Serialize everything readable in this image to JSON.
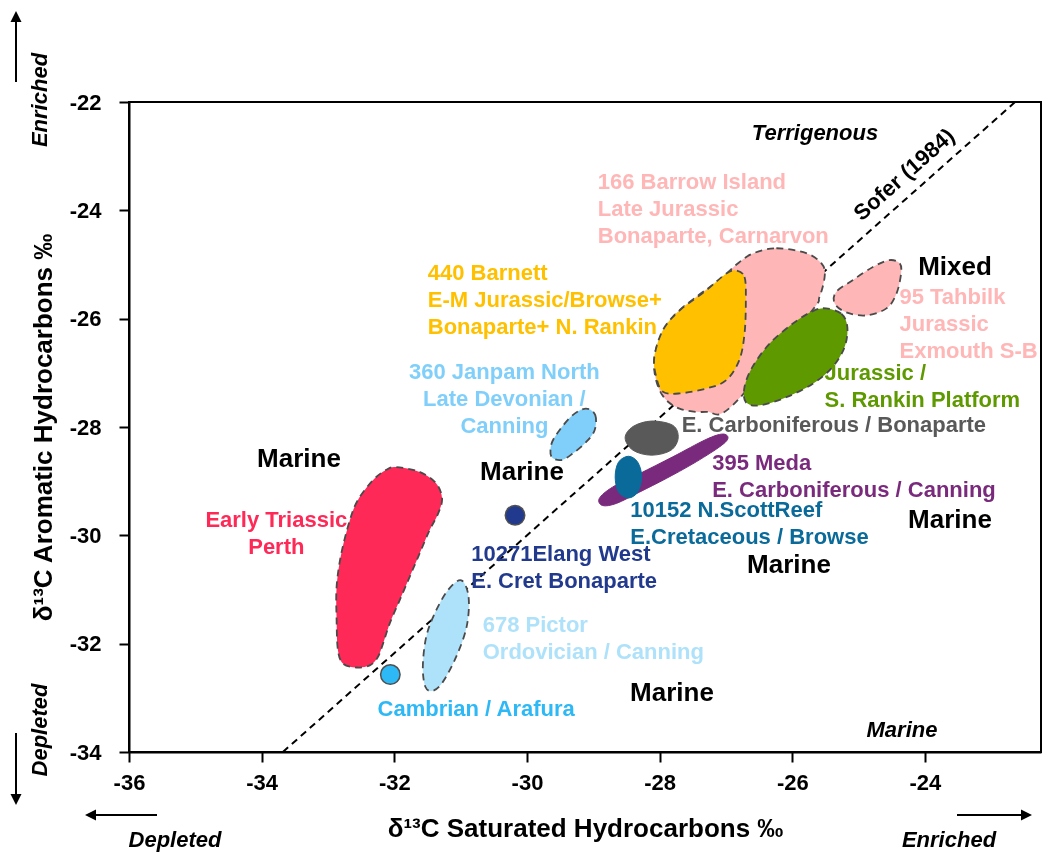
{
  "chart_data": {
    "type": "scatter",
    "xlabel": "δ¹³C Saturated Hydrocarbons ‰",
    "ylabel": "δ¹³C Aromatic Hydrocarbons ‰",
    "xlim": [
      -36,
      -22.25
    ],
    "ylim": [
      -34,
      -22
    ],
    "xticks": [
      -36,
      -34,
      -32,
      -30,
      -28,
      -26,
      -24
    ],
    "yticks": [
      -34,
      -32,
      -30,
      -28,
      -26,
      -24,
      -22
    ],
    "line_style": "dashed",
    "series": [
      {
        "type": "line",
        "name": "Sofer (1984)",
        "color": "#000000",
        "x": [
          -33.68,
          -22.64
        ],
        "values": [
          -34,
          -22
        ]
      },
      {
        "type": "area",
        "name": "Early Triassic\nPerth",
        "color": "#ff2957",
        "x": [
          -31.97,
          -31.62,
          -31.37,
          -31.28,
          -31.34,
          -31.47,
          -31.62,
          -31.77,
          -31.92,
          -32.07,
          -32.17,
          -32.25,
          -32.37,
          -32.57,
          -32.77,
          -32.85,
          -32.87,
          -32.87,
          -32.8,
          -32.67,
          -32.55,
          -32.32,
          -32.12
        ],
        "values": [
          -28.74,
          -28.83,
          -29.04,
          -29.32,
          -29.6,
          -29.91,
          -30.34,
          -30.77,
          -31.2,
          -31.63,
          -32.0,
          -32.25,
          -32.4,
          -32.44,
          -32.37,
          -32.12,
          -31.57,
          -30.95,
          -30.34,
          -29.72,
          -29.35,
          -28.98,
          -28.79
        ]
      },
      {
        "type": "area",
        "name": "678 Pictor\nOrdovician / Canning",
        "color": "#aee1fa",
        "x": [
          -30.99,
          -30.88,
          -30.91,
          -31.07,
          -31.27,
          -31.42,
          -31.53,
          -31.57,
          -31.52,
          -31.39,
          -31.19
        ],
        "values": [
          -30.83,
          -31.14,
          -31.69,
          -32.25,
          -32.71,
          -32.87,
          -32.8,
          -32.43,
          -31.88,
          -31.44,
          -31.01
        ]
      },
      {
        "type": "area",
        "name": "360 Janpam North\nLate Devonian /\nCanning",
        "color": "#7fcffa",
        "x": [
          -29.11,
          -28.97,
          -28.98,
          -29.11,
          -29.31,
          -29.48,
          -29.63,
          -29.63,
          -29.51,
          -29.31
        ],
        "values": [
          -27.66,
          -27.78,
          -28.06,
          -28.28,
          -28.49,
          -28.61,
          -28.55,
          -28.31,
          -28.06,
          -27.78
        ]
      },
      {
        "type": "area",
        "name": "E. Carboniferous / Bonaparte",
        "color": "#595959",
        "line_style": "solid",
        "x": [
          -28.52,
          -28.4,
          -28.12,
          -27.8,
          -27.72,
          -27.83,
          -28.12,
          -28.4
        ],
        "values": [
          -28.2,
          -27.99,
          -27.89,
          -27.97,
          -28.2,
          -28.43,
          -28.52,
          -28.43
        ]
      },
      {
        "type": "area",
        "name": "395 Meda\nE. Carboniferous / Canning",
        "color": "#7a2a7c",
        "line_style": "solid",
        "x": [
          -28.91,
          -28.71,
          -28.3,
          -27.8,
          -27.3,
          -27.05,
          -26.97,
          -27.1,
          -27.5,
          -27.9,
          -28.3,
          -28.65,
          -28.86
        ],
        "values": [
          -29.32,
          -29.11,
          -28.86,
          -28.55,
          -28.23,
          -28.13,
          -28.21,
          -28.37,
          -28.68,
          -28.95,
          -29.2,
          -29.41,
          -29.45
        ]
      },
      {
        "type": "area",
        "name": "10152 N.ScottReef\nE.Cretaceous / Browse",
        "color": "#0a6a9a",
        "line_style": "solid",
        "x": [
          -28.47,
          -28.33,
          -28.27,
          -28.33,
          -28.47,
          -28.62,
          -28.67,
          -28.62
        ],
        "values": [
          -28.54,
          -28.65,
          -28.92,
          -29.2,
          -29.31,
          -29.2,
          -28.92,
          -28.65
        ]
      },
      {
        "type": "area",
        "name": "166 Barrow Island\nLate Jurassic\nBonaparte, Carnarvon",
        "color": "#ffb6b6",
        "x": [
          -26.6,
          -26.24,
          -25.79,
          -25.56,
          -25.51,
          -25.59,
          -25.74,
          -26.9,
          -27.3,
          -27.7,
          -27.96,
          -28.08,
          -28.03,
          -27.8,
          -27.45,
          -27.1,
          -26.85
        ],
        "values": [
          -24.8,
          -24.7,
          -24.79,
          -24.98,
          -25.2,
          -25.6,
          -25.91,
          -27.6,
          -27.72,
          -27.66,
          -27.41,
          -26.95,
          -26.46,
          -25.97,
          -25.6,
          -25.29,
          -25.01
        ]
      },
      {
        "type": "area",
        "name": "440 Barnett\nE-M Jurassic/Browse+\nBonaparte+ N. Rankin",
        "color": "#ffc000",
        "x": [
          -26.85,
          -26.72,
          -26.7,
          -26.72,
          -26.8,
          -27.0,
          -27.3,
          -27.7,
          -27.95,
          -28.05,
          -28.08,
          -27.95,
          -27.7,
          -27.3,
          -27.0
        ],
        "values": [
          -25.11,
          -25.23,
          -25.66,
          -26.28,
          -26.77,
          -27.14,
          -27.29,
          -27.38,
          -27.35,
          -27.08,
          -26.71,
          -26.21,
          -25.85,
          -25.48,
          -25.17
        ]
      },
      {
        "type": "area",
        "name": "95 Tahbilk\nJurassic\nExmouth S-B",
        "color": "#ffb6b6",
        "x": [
          -24.54,
          -24.38,
          -24.36,
          -24.43,
          -24.58,
          -24.89,
          -25.19,
          -25.36,
          -25.34,
          -25.09,
          -24.79
        ],
        "values": [
          -24.92,
          -24.98,
          -25.17,
          -25.54,
          -25.81,
          -25.94,
          -25.88,
          -25.72,
          -25.51,
          -25.29,
          -25.05
        ]
      },
      {
        "type": "area",
        "name": "Jurassic /\nS. Rankin Platform",
        "color": "#5f9900",
        "x": [
          -25.49,
          -25.26,
          -25.17,
          -25.21,
          -25.39,
          -25.69,
          -26.09,
          -26.49,
          -26.7,
          -26.72,
          -26.6,
          -26.34,
          -25.99,
          -25.69
        ],
        "values": [
          -25.81,
          -25.91,
          -26.15,
          -26.52,
          -26.89,
          -27.2,
          -27.45,
          -27.6,
          -27.54,
          -27.26,
          -26.89,
          -26.46,
          -26.09,
          -25.86
        ]
      },
      {
        "name": "Cambrian / Arafura",
        "color": "#2db8f6",
        "marker": "circle",
        "x": [
          -32.06
        ],
        "values": [
          -32.57
        ]
      },
      {
        "name": "10271Elang West\nE. Cret Bonaparte",
        "color": "#223a8d",
        "marker": "circle",
        "x": [
          -30.18
        ],
        "values": [
          -29.63
        ]
      }
    ],
    "annotations": [
      "Terrigenous",
      "Mixed",
      "Marine",
      "Marine",
      "Marine",
      "Marine",
      "Marine",
      "Marine",
      "Enriched",
      "Depleted",
      "Depleted",
      "Enriched"
    ]
  }
}
